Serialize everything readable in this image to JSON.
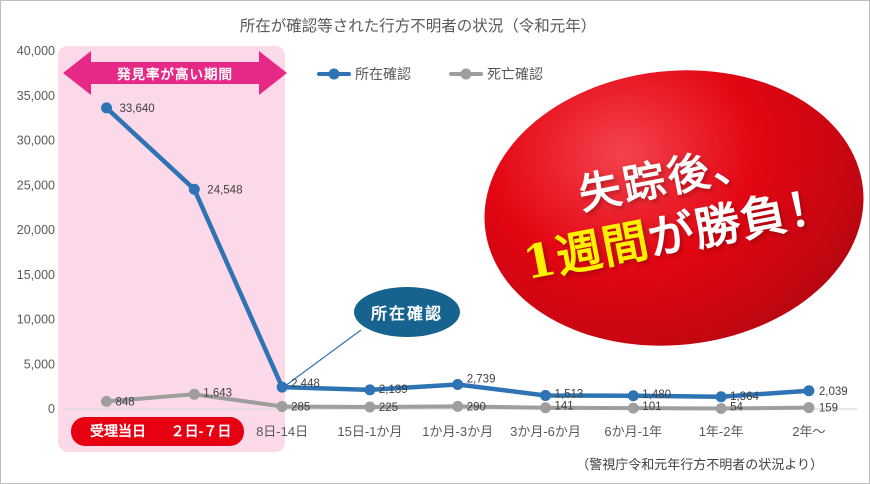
{
  "highlight_band": {
    "label": "発見率が高い期間",
    "band_color": "#FCD9E8",
    "arrow_color": "#E62987"
  },
  "callout": {
    "label": "所在確認",
    "fill": "#16638F",
    "line_color": "#2E74B5"
  },
  "balloon": {
    "line1": "失踪後、",
    "highlight": "1週間",
    "rest": "が勝負！",
    "text_color": "#FFFFFF",
    "highlight_color": "#FFF100",
    "gradient": [
      "#F4434D",
      "#E30613",
      "#C20711",
      "#90040A"
    ]
  },
  "source": "（警視庁令和元年行方不明者の状況より）",
  "chart_data": {
    "type": "line",
    "title": "所在が確認等された行方不明者の状況（令和元年）",
    "xlabel": "",
    "ylabel": "",
    "categories": [
      "受理当日",
      "２日-７日",
      "8日-14日",
      "15日-1か月",
      "1か月-3か月",
      "3か月-6か月",
      "6か月-1年",
      "1年-2年",
      "2年～"
    ],
    "series": [
      {
        "name": "所在確認",
        "color": "#2E74B5",
        "values": [
          33640,
          24548,
          2448,
          2139,
          2739,
          1513,
          1480,
          1364,
          2039
        ]
      },
      {
        "name": "死亡確認",
        "color": "#9E9E9E",
        "values": [
          848,
          1643,
          285,
          225,
          290,
          141,
          101,
          54,
          159
        ]
      }
    ],
    "ylim": [
      0,
      40000
    ],
    "ytick_step": 5000,
    "gridlines": false,
    "legend_position": "top",
    "axis_color": "#D9D9D9",
    "tick_color": "#595959",
    "label_color": "#404040",
    "category_highlight": {
      "count": 2,
      "box_color": "#E60012",
      "text_color": "#FFFFFF"
    }
  }
}
